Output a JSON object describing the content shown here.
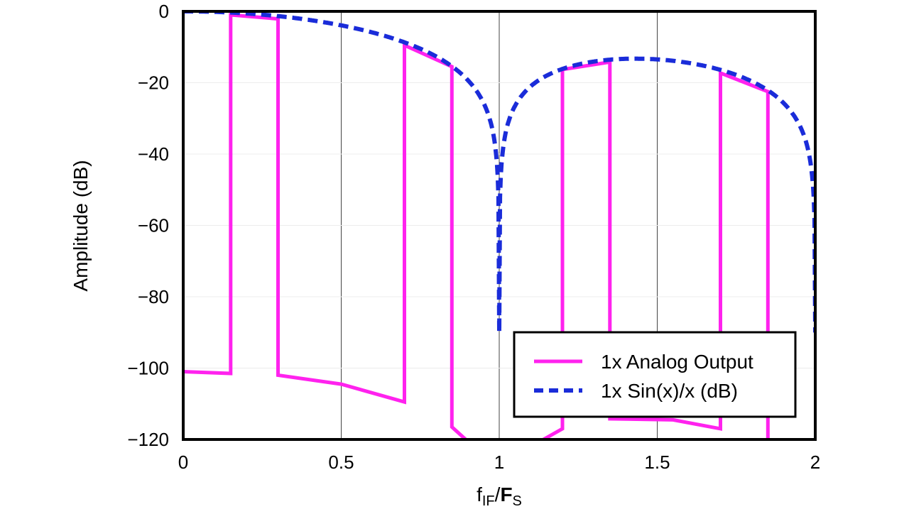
{
  "chart_data": {
    "type": "line",
    "title": "",
    "ylabel": "Amplitude (dB)",
    "xlabel": {
      "f": "f",
      "sub1": "IF",
      "slash": "/",
      "F": "F",
      "sub2": "S"
    },
    "xlim": [
      0,
      2
    ],
    "ylim": [
      -120,
      0
    ],
    "x_ticks": [
      0,
      0.5,
      1,
      1.5,
      2
    ],
    "x_tick_labels": [
      "0",
      "0.5",
      "1",
      "1.5",
      "2"
    ],
    "y_ticks": [
      0,
      -20,
      -40,
      -60,
      -80,
      -100,
      -120
    ],
    "y_tick_labels": [
      "0",
      "−20",
      "−40",
      "−60",
      "−80",
      "−100",
      "−120"
    ],
    "grid": true,
    "legend_position": "bottom-right",
    "series": [
      {
        "name": "1x Analog Output",
        "color": "#ff22ee",
        "style": "solid",
        "segments": [
          [
            [
              0,
              -101
            ],
            [
              0.15,
              -101.5
            ],
            [
              0.15,
              -1
            ],
            [
              0.3,
              -2.1
            ],
            [
              0.3,
              -102
            ],
            [
              0.5,
              -104.5
            ],
            [
              0.7,
              -109.5
            ],
            [
              0.7,
              -9.5
            ],
            [
              0.85,
              -15.5
            ],
            [
              0.85,
              -116.5
            ],
            [
              0.9,
              -120.5
            ]
          ],
          [
            [
              1.13,
              -120.5
            ],
            [
              1.2,
              -117
            ],
            [
              1.2,
              -16.3
            ],
            [
              1.35,
              -14.2
            ],
            [
              1.35,
              -114.2
            ],
            [
              1.55,
              -114.5
            ],
            [
              1.7,
              -117
            ],
            [
              1.7,
              -17.3
            ],
            [
              1.85,
              -22.5
            ],
            [
              1.85,
              -120.5
            ]
          ]
        ]
      },
      {
        "name": "1x Sin(x)/x (dB)",
        "color": "#1a2cd9",
        "style": "dashed",
        "function": "sinc_db",
        "floor_db": -90
      }
    ]
  }
}
